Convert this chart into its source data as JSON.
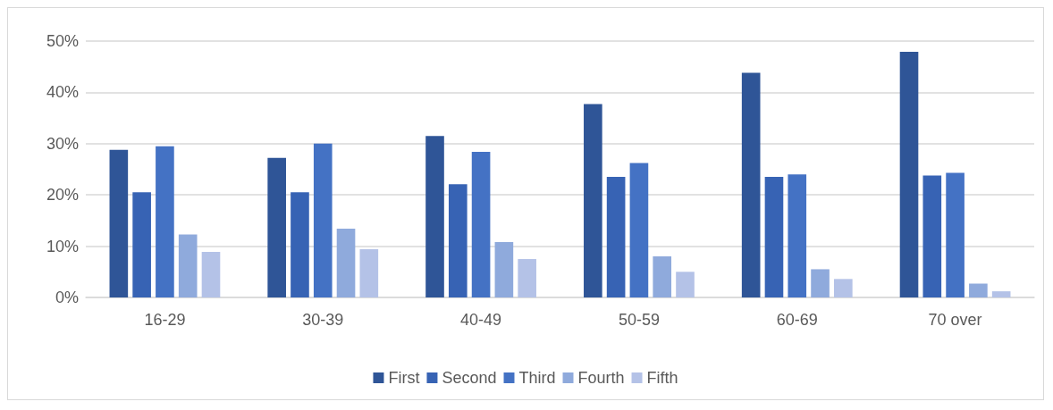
{
  "chart_data": {
    "type": "bar",
    "categories": [
      "16-29",
      "30-39",
      "40-49",
      "50-59",
      "60-69",
      "70 over"
    ],
    "series": [
      {
        "name": "First",
        "color": "#2f5597",
        "values": [
          28.8,
          27.2,
          31.5,
          37.7,
          43.8,
          47.9
        ]
      },
      {
        "name": "Second",
        "color": "#3763b4",
        "values": [
          20.5,
          20.5,
          22.1,
          23.5,
          23.5,
          23.8
        ]
      },
      {
        "name": "Third",
        "color": "#4472c4",
        "values": [
          29.5,
          30.0,
          28.4,
          26.2,
          24.0,
          24.3
        ]
      },
      {
        "name": "Fourth",
        "color": "#8faadc",
        "values": [
          12.3,
          13.4,
          10.8,
          8.0,
          5.5,
          2.7
        ]
      },
      {
        "name": "Fifth",
        "color": "#b4c2e7",
        "values": [
          8.9,
          9.4,
          7.5,
          5.0,
          3.6,
          1.2
        ]
      }
    ],
    "ylim": [
      0,
      50
    ],
    "yticks": [
      {
        "value": 0,
        "label": "0%"
      },
      {
        "value": 10,
        "label": "10%"
      },
      {
        "value": 20,
        "label": "20%"
      },
      {
        "value": 30,
        "label": "30%"
      },
      {
        "value": 40,
        "label": "40%"
      },
      {
        "value": 50,
        "label": "50%"
      }
    ],
    "grid": "y",
    "legend": "bottom"
  }
}
